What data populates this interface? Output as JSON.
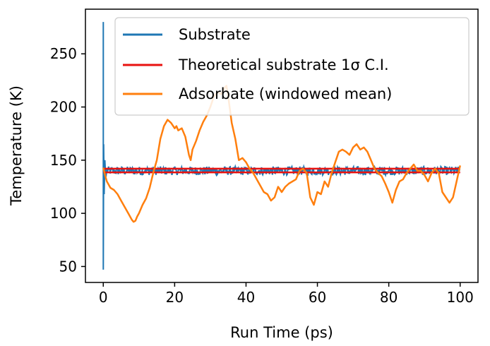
{
  "chart_data": {
    "type": "line",
    "title": "",
    "xlabel": "Run Time (ps)",
    "ylabel": "Temperature (K)",
    "xlim": [
      -5,
      105
    ],
    "ylim": [
      35,
      292
    ],
    "xticks": [
      0,
      20,
      40,
      60,
      80,
      100
    ],
    "yticks": [
      50,
      100,
      150,
      200,
      250
    ],
    "grid": false,
    "legend_position": "top-right",
    "ci_band": {
      "lower": 138.5,
      "upper": 142.0,
      "color": "#e8120f"
    },
    "series": [
      {
        "name": "Substrate",
        "color": "#1f77b4",
        "style": "noisy-equilibration",
        "start_spike": {
          "x": 0,
          "y_max": 280,
          "y_min": 47
        },
        "mean": 140,
        "amplitude": 4,
        "x_end": 100
      },
      {
        "name": "Theoretical substrate 1σ C.I.",
        "color": "#e8120f",
        "x": [
          0,
          100
        ],
        "y_lower": [
          138.5,
          138.5
        ],
        "y_upper": [
          142.0,
          142.0
        ]
      },
      {
        "name": "Adsorbate (windowed mean)",
        "color": "#ff7f0e",
        "x": [
          0,
          0.5,
          1,
          2,
          3,
          4,
          5,
          6,
          7,
          8,
          8.5,
          9,
          9.5,
          10,
          11,
          12,
          13,
          14,
          15,
          16,
          17,
          18,
          19,
          20,
          20.5,
          21,
          22,
          23,
          24,
          24.5,
          25,
          26,
          27,
          28,
          29,
          30,
          31,
          32,
          33,
          34,
          34.5,
          35,
          36,
          37,
          38,
          39,
          40,
          41,
          42,
          43,
          44,
          45,
          46,
          47,
          48,
          49,
          50,
          51,
          52,
          53,
          54,
          55,
          56,
          57,
          58,
          59,
          60,
          61,
          62,
          63,
          64,
          65,
          66,
          67,
          68,
          69,
          70,
          71,
          72,
          73,
          74,
          75,
          76,
          77,
          78,
          79,
          80,
          81,
          82,
          83,
          84,
          85,
          86,
          87,
          88,
          89,
          90,
          91,
          92,
          93,
          94,
          95,
          96,
          97,
          98,
          99,
          100
        ],
        "y": [
          143,
          136,
          130,
          124,
          122,
          118,
          112,
          106,
          100,
          94,
          92,
          93,
          97,
          100,
          108,
          114,
          124,
          138,
          150,
          170,
          182,
          188,
          185,
          180,
          182,
          178,
          180,
          172,
          155,
          150,
          160,
          168,
          178,
          186,
          192,
          200,
          210,
          214,
          212,
          218,
          220,
          210,
          185,
          170,
          150,
          152,
          148,
          142,
          138,
          132,
          126,
          120,
          118,
          112,
          115,
          125,
          120,
          125,
          128,
          130,
          132,
          140,
          142,
          138,
          115,
          108,
          120,
          118,
          130,
          125,
          138,
          148,
          158,
          160,
          158,
          155,
          162,
          165,
          160,
          162,
          158,
          150,
          142,
          138,
          135,
          128,
          120,
          110,
          122,
          130,
          132,
          138,
          142,
          146,
          140,
          140,
          136,
          130,
          138,
          142,
          138,
          120,
          115,
          110,
          115,
          130,
          145
        ]
      }
    ]
  }
}
